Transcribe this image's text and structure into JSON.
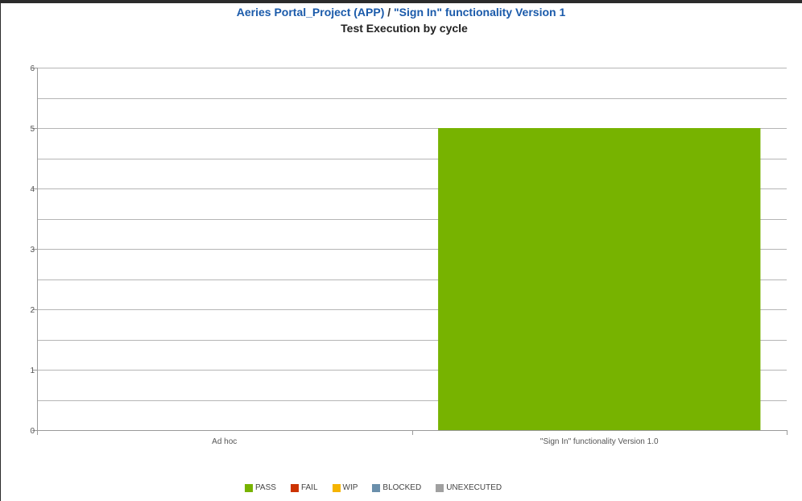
{
  "header": {
    "project": "Aeries Portal_Project (APP)",
    "separator": "/",
    "version": "\"Sign In\" functionality Version 1",
    "subtitle": "Test Execution by cycle"
  },
  "colors": {
    "pass": "#77b300",
    "fail": "#cc3300",
    "wip": "#f5b400",
    "blocked": "#6a8fab",
    "unexecuted": "#a0a0a0"
  },
  "chart_data": {
    "type": "bar",
    "title": "Test Execution by cycle",
    "categories": [
      "Ad hoc",
      "\"Sign In\" functionality Version 1.0"
    ],
    "series": [
      {
        "name": "PASS",
        "values": [
          0,
          5
        ],
        "color": "#77b300"
      },
      {
        "name": "FAIL",
        "values": [
          0,
          0
        ],
        "color": "#cc3300"
      },
      {
        "name": "WIP",
        "values": [
          0,
          0
        ],
        "color": "#f5b400"
      },
      {
        "name": "BLOCKED",
        "values": [
          0,
          0
        ],
        "color": "#6a8fab"
      },
      {
        "name": "UNEXECUTED",
        "values": [
          0,
          0
        ],
        "color": "#a0a0a0"
      }
    ],
    "stacked": true,
    "ylim": [
      0,
      6
    ],
    "yticks": [
      0,
      1,
      2,
      3,
      4,
      5,
      6
    ],
    "grid": true,
    "legend": "bottom"
  },
  "legend": [
    {
      "label": "PASS",
      "color": "#77b300"
    },
    {
      "label": "FAIL",
      "color": "#cc3300"
    },
    {
      "label": "WIP",
      "color": "#f5b400"
    },
    {
      "label": "BLOCKED",
      "color": "#6a8fab"
    },
    {
      "label": "UNEXECUTED",
      "color": "#a0a0a0"
    }
  ]
}
